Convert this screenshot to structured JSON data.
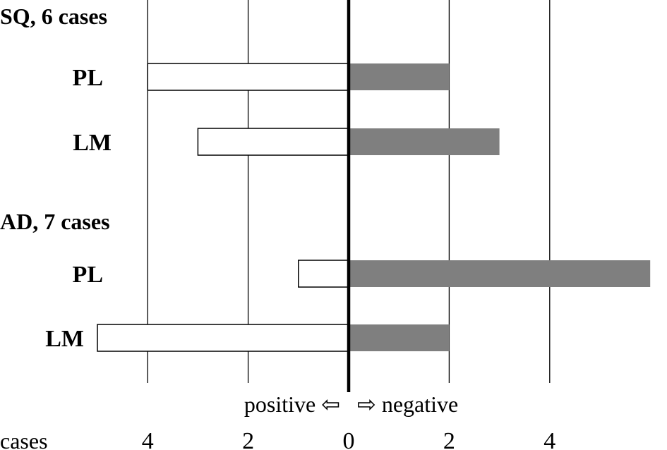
{
  "chart_data": {
    "type": "bar",
    "orientation": "horizontal-diverging",
    "groups": [
      {
        "label": "SQ, 6 cases",
        "rows": [
          {
            "label": "PL",
            "positive": 4,
            "negative": 2
          },
          {
            "label": "LM",
            "positive": 3,
            "negative": 3
          }
        ]
      },
      {
        "label": "AD, 7 cases",
        "rows": [
          {
            "label": "PL",
            "positive": 1,
            "negative": 6
          },
          {
            "label": "LM",
            "positive": 5,
            "negative": 2
          }
        ]
      }
    ],
    "series": [
      {
        "name": "positive",
        "color": "#ffffff",
        "stroke": "#000000"
      },
      {
        "name": "negative",
        "color": "#7f7f7f"
      }
    ],
    "axis": {
      "label": "cases",
      "ticks": [
        {
          "value": -4,
          "label": "4"
        },
        {
          "value": -2,
          "label": "2"
        },
        {
          "value": 0,
          "label": "0"
        },
        {
          "value": 2,
          "label": "2"
        },
        {
          "value": 4,
          "label": "4"
        }
      ],
      "xlim": [
        -5,
        6
      ]
    },
    "direction_labels": {
      "left": "positive ⇦",
      "right": "⇨ negative"
    },
    "grid": true
  }
}
